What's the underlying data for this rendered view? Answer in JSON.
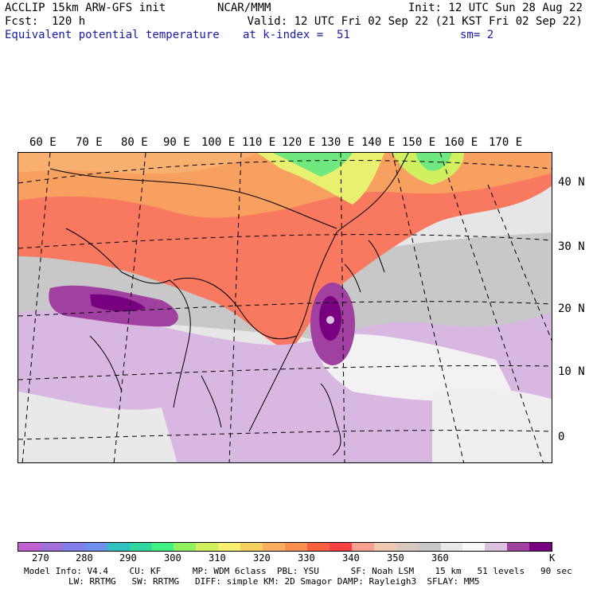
{
  "header": {
    "line1": "ACCLIP 15km ARW-GFS init",
    "line2": "Fcst:  120 h",
    "field": "Equivalent potential temperature",
    "center": "NCAR/MMM",
    "init": "Init: 12 UTC Sun 28 Aug 22",
    "valid": "Valid: 12 UTC Fri 02 Sep 22 (21 KST Fri 02 Sep 22)",
    "kindex": "at k-index =  51",
    "smooth": "sm= 2"
  },
  "map": {
    "lon_labels": [
      "60 E",
      "70 E",
      "80 E",
      "90 E",
      "100 E",
      "110 E",
      "120 E",
      "130 E",
      "140 E",
      "150 E",
      "160 E",
      "170 E"
    ],
    "lat_labels": [
      "40 N",
      "30 N",
      "20 N",
      "10 N",
      "0"
    ]
  },
  "colorbar": {
    "colors": [
      "#c060d0",
      "#a070d8",
      "#8080e8",
      "#7090f0",
      "#30c0c0",
      "#30d8a0",
      "#40f080",
      "#90f060",
      "#d0f060",
      "#f8f070",
      "#f8d060",
      "#f8b060",
      "#f89050",
      "#f86040",
      "#f84040",
      "#f8a090",
      "#f0c8b0",
      "#d8c8c0",
      "#c8c8c8",
      "#e8e8e8",
      "#f8f8f8",
      "#dcc0e0",
      "#a040a0",
      "#780080"
    ],
    "ticks": [
      "270",
      "280",
      "290",
      "300",
      "310",
      "320",
      "330",
      "340",
      "350",
      "360"
    ],
    "unit": "K"
  },
  "footer": {
    "line1": "Model Info: V4.4    CU: KF      MP: WDM 6class  PBL: YSU      SF: Noah LSM    15 km   51 levels   90 sec",
    "line2": "LW: RRTMG   SW: RRTMG   DIFF: simple KM: 2D Smagor DAMP: Rayleigh3  SFLAY: MM5"
  }
}
